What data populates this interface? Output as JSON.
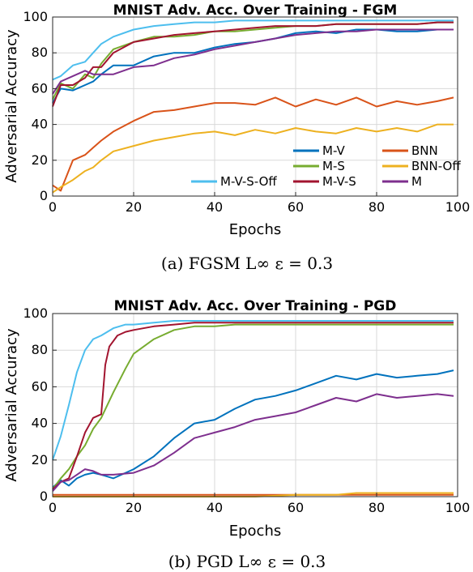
{
  "colors": {
    "M-V": "#0072BD",
    "BNN": "#D95319",
    "M-S": "#77AC30",
    "BNN-Off": "#EDB120",
    "M-V-S-Off": "#4DBEEE",
    "M-V-S": "#A2142F",
    "M": "#7E2F8E"
  },
  "captions": [
    "(a) FGSM L∞ ε = 0.3",
    "(b) PGD L∞ ε = 0.3"
  ],
  "chart_data": [
    {
      "type": "line",
      "title": "MNIST Adv. Acc. Over Training - FGM",
      "xlabel": "Epochs",
      "ylabel": "Adversarial Accuracy",
      "xlim": [
        0,
        100
      ],
      "ylim": [
        0,
        100
      ],
      "xticks": [
        0,
        20,
        40,
        60,
        80,
        100
      ],
      "yticks": [
        0,
        20,
        40,
        60,
        80,
        100
      ],
      "grid": true,
      "legend_position": "bottom-right",
      "legend_entries": [
        "M-V",
        "BNN",
        "M-S",
        "BNN-Off",
        "M-V-S-Off",
        "M-V-S",
        "M"
      ],
      "series": [
        {
          "name": "M-V",
          "x": [
            0,
            2,
            5,
            8,
            10,
            12,
            15,
            20,
            25,
            30,
            35,
            40,
            45,
            50,
            55,
            60,
            65,
            70,
            75,
            80,
            85,
            90,
            95,
            99
          ],
          "values": [
            52,
            60,
            59,
            62,
            64,
            68,
            73,
            73,
            78,
            80,
            80,
            83,
            85,
            86,
            88,
            91,
            92,
            91,
            93,
            93,
            92,
            92,
            93,
            93
          ]
        },
        {
          "name": "BNN",
          "x": [
            0,
            2,
            5,
            8,
            10,
            12,
            15,
            20,
            25,
            30,
            35,
            40,
            45,
            50,
            55,
            60,
            65,
            70,
            75,
            80,
            85,
            90,
            95,
            99
          ],
          "values": [
            6,
            3,
            20,
            23,
            27,
            31,
            36,
            42,
            47,
            48,
            50,
            52,
            52,
            51,
            55,
            50,
            54,
            51,
            55,
            50,
            53,
            51,
            53,
            55
          ]
        },
        {
          "name": "M-S",
          "x": [
            0,
            2,
            5,
            8,
            10,
            12,
            15,
            20,
            25,
            30,
            35,
            40,
            45,
            50,
            55,
            60,
            65,
            70,
            75,
            80,
            85,
            90,
            95,
            99
          ],
          "values": [
            54,
            63,
            60,
            68,
            66,
            74,
            82,
            86,
            89,
            89,
            90,
            92,
            92,
            93,
            94,
            95,
            95,
            96,
            96,
            96,
            96,
            96,
            97,
            97
          ]
        },
        {
          "name": "BNN-Off",
          "x": [
            0,
            2,
            5,
            8,
            10,
            12,
            15,
            20,
            25,
            30,
            35,
            40,
            45,
            50,
            55,
            60,
            65,
            70,
            75,
            80,
            85,
            90,
            95,
            99
          ],
          "values": [
            2,
            5,
            9,
            14,
            16,
            20,
            25,
            28,
            31,
            33,
            35,
            36,
            34,
            37,
            35,
            38,
            36,
            35,
            38,
            36,
            38,
            36,
            40,
            40
          ]
        },
        {
          "name": "M-V-S-Off",
          "x": [
            0,
            2,
            5,
            8,
            10,
            12,
            15,
            20,
            25,
            30,
            35,
            40,
            45,
            50,
            55,
            60,
            65,
            70,
            75,
            80,
            85,
            90,
            95,
            99
          ],
          "values": [
            65,
            67,
            73,
            75,
            80,
            85,
            89,
            93,
            95,
            96,
            97,
            97,
            98,
            98,
            98,
            98,
            98,
            98,
            98,
            98,
            98,
            98,
            98,
            98
          ]
        },
        {
          "name": "M-V-S",
          "x": [
            0,
            2,
            5,
            8,
            10,
            12,
            15,
            20,
            25,
            30,
            35,
            40,
            45,
            50,
            55,
            60,
            65,
            70,
            75,
            80,
            85,
            90,
            95,
            99
          ],
          "values": [
            50,
            62,
            62,
            66,
            72,
            72,
            80,
            86,
            88,
            90,
            91,
            92,
            93,
            94,
            95,
            95,
            95,
            96,
            96,
            96,
            96,
            96,
            97,
            97
          ]
        },
        {
          "name": "M",
          "x": [
            0,
            2,
            5,
            8,
            10,
            12,
            15,
            20,
            25,
            30,
            35,
            40,
            45,
            50,
            55,
            60,
            65,
            70,
            75,
            80,
            85,
            90,
            95,
            99
          ],
          "values": [
            57,
            64,
            67,
            70,
            68,
            68,
            68,
            72,
            73,
            77,
            79,
            82,
            84,
            86,
            88,
            90,
            91,
            92,
            92,
            93,
            93,
            93,
            93,
            93
          ]
        }
      ]
    },
    {
      "type": "line",
      "title": "MNIST Adv. Acc. Over Training - PGD",
      "xlabel": "Epochs",
      "ylabel": "Adversarial Accuracy",
      "xlim": [
        0,
        100
      ],
      "ylim": [
        0,
        100
      ],
      "xticks": [
        0,
        20,
        40,
        60,
        80,
        100
      ],
      "yticks": [
        0,
        20,
        40,
        60,
        80,
        100
      ],
      "grid": true,
      "series": [
        {
          "name": "M-V",
          "x": [
            0,
            2,
            4,
            6,
            8,
            10,
            12,
            15,
            20,
            25,
            30,
            35,
            40,
            45,
            50,
            55,
            60,
            65,
            70,
            75,
            80,
            85,
            90,
            95,
            99
          ],
          "values": [
            5,
            9,
            6,
            10,
            12,
            13,
            12,
            10,
            15,
            22,
            32,
            40,
            42,
            48,
            53,
            55,
            58,
            62,
            66,
            64,
            67,
            65,
            66,
            67,
            69
          ]
        },
        {
          "name": "BNN",
          "x": [
            0,
            10,
            20,
            30,
            40,
            50,
            60,
            70,
            80,
            90,
            99
          ],
          "values": [
            1,
            1,
            1,
            1,
            1,
            1,
            1,
            1,
            1,
            1,
            1
          ]
        },
        {
          "name": "M-S",
          "x": [
            0,
            2,
            4,
            6,
            8,
            10,
            12,
            15,
            18,
            20,
            25,
            30,
            35,
            40,
            45,
            50,
            55,
            60,
            65,
            70,
            75,
            80,
            85,
            90,
            95,
            99
          ],
          "values": [
            4,
            10,
            15,
            22,
            28,
            37,
            43,
            57,
            70,
            78,
            86,
            91,
            93,
            93,
            94,
            94,
            94,
            94,
            94,
            94,
            94,
            94,
            94,
            94,
            94,
            94
          ]
        },
        {
          "name": "BNN-Off",
          "x": [
            0,
            10,
            20,
            30,
            40,
            50,
            60,
            70,
            75,
            80,
            85,
            90,
            95,
            99
          ],
          "values": [
            0,
            0,
            0,
            0,
            0,
            0,
            1,
            1,
            2,
            2,
            2,
            2,
            2,
            2
          ]
        },
        {
          "name": "M-V-S-Off",
          "x": [
            0,
            2,
            4,
            6,
            8,
            10,
            12,
            15,
            18,
            20,
            25,
            30,
            35,
            40,
            45,
            50,
            55,
            60,
            65,
            70,
            75,
            80,
            85,
            90,
            95,
            99
          ],
          "values": [
            20,
            33,
            50,
            68,
            80,
            86,
            88,
            92,
            94,
            94,
            95,
            96,
            96,
            96,
            96,
            96,
            96,
            96,
            96,
            96,
            96,
            96,
            96,
            96,
            96,
            96
          ]
        },
        {
          "name": "M-V-S",
          "x": [
            0,
            2,
            4,
            6,
            8,
            10,
            12,
            13,
            14,
            16,
            18,
            20,
            25,
            30,
            35,
            40,
            45,
            50,
            55,
            60,
            65,
            70,
            75,
            80,
            85,
            90,
            95,
            99
          ],
          "values": [
            4,
            8,
            10,
            22,
            35,
            43,
            45,
            72,
            82,
            88,
            90,
            91,
            93,
            94,
            95,
            95,
            95,
            95,
            95,
            95,
            95,
            95,
            95,
            95,
            95,
            95,
            95,
            95
          ]
        },
        {
          "name": "M",
          "x": [
            0,
            2,
            4,
            6,
            8,
            10,
            12,
            15,
            20,
            25,
            30,
            35,
            40,
            45,
            50,
            55,
            60,
            65,
            70,
            75,
            80,
            85,
            90,
            95,
            99
          ],
          "values": [
            3,
            8,
            9,
            12,
            15,
            14,
            12,
            12,
            13,
            17,
            24,
            32,
            35,
            38,
            42,
            44,
            46,
            50,
            54,
            52,
            56,
            54,
            55,
            56,
            55
          ]
        }
      ]
    }
  ]
}
